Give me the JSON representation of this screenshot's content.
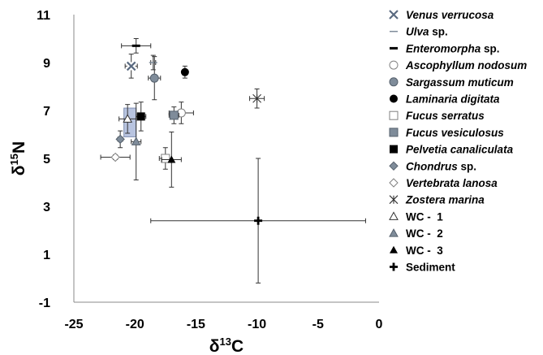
{
  "chart_data": {
    "type": "scatter",
    "xlabel": "δ13C",
    "xlabel_parts": [
      "δ",
      "13",
      "C"
    ],
    "ylabel": "δ15N",
    "ylabel_parts": [
      "δ",
      "15",
      "N"
    ],
    "xlim": [
      -25,
      0
    ],
    "ylim": [
      -1,
      11
    ],
    "xticks": [
      -25,
      -20,
      -15,
      -10,
      -5,
      0
    ],
    "yticks": [
      -1,
      1,
      3,
      5,
      7,
      9,
      11
    ],
    "grid": false,
    "legend_position": "right",
    "series": [
      {
        "name": "Venus verrucosa",
        "name_italic": "Venus verrucosa",
        "name_plain": "",
        "marker": "x-box",
        "x": -20.3,
        "y": 8.85,
        "xerr": 0.5,
        "yerr": 0.5
      },
      {
        "name": "Ulva sp.",
        "name_italic": "Ulva",
        "name_plain": " sp.",
        "marker": "dash",
        "x": -18.5,
        "y": 9.0,
        "xerr": 0.2,
        "yerr": 0.3
      },
      {
        "name": "Enteromorpha sp.",
        "name_italic": "Enteromorpha",
        "name_plain": " sp.",
        "marker": "bar",
        "x": -19.9,
        "y": 9.7,
        "xerr": 1.2,
        "yerr": 0.3
      },
      {
        "name": "Ascophyllum nodosum",
        "name_italic": "Ascophyllum nodosum",
        "name_plain": "",
        "marker": "circle-open",
        "x": -16.2,
        "y": 6.9,
        "xerr": 1.0,
        "yerr": 0.45
      },
      {
        "name": "Sargassum muticum",
        "name_italic": "Sargassum muticum",
        "name_plain": "",
        "marker": "circle-grey",
        "x": -18.4,
        "y": 8.35,
        "xerr": 0.5,
        "yerr": 0.9
      },
      {
        "name": "Laminaria digitata",
        "name_italic": "Laminaria digitata",
        "name_plain": "",
        "marker": "circle-black",
        "x": -15.9,
        "y": 8.6,
        "xerr": 0.2,
        "yerr": 0.25
      },
      {
        "name": "Fucus serratus",
        "name_italic": "Fucus serratus",
        "name_plain": "",
        "marker": "square-open",
        "x": -17.5,
        "y": 5.0,
        "xerr": 0.5,
        "yerr": 0.45
      },
      {
        "name": "Fucus vesiculosus",
        "name_italic": "Fucus vesiculosus",
        "name_plain": "",
        "marker": "square-grey",
        "x": -16.8,
        "y": 6.8,
        "xerr": 0.4,
        "yerr": 0.35
      },
      {
        "name": "Pelvetia canaliculata",
        "name_italic": "Pelvetia canaliculata",
        "name_plain": "",
        "marker": "square-black",
        "x": -19.5,
        "y": 6.75,
        "xerr": 0.4,
        "yerr": 0.6
      },
      {
        "name": "Chondrus sp.",
        "name_italic": "Chondrus",
        "name_plain": " sp.",
        "marker": "diamond-grey",
        "x": -21.2,
        "y": 5.8,
        "xerr": 0.2,
        "yerr": 0.35
      },
      {
        "name": "Vertebrata lanosa",
        "name_italic": "Vertebrata lanosa",
        "name_plain": "",
        "marker": "diamond-open",
        "x": -21.6,
        "y": 5.05,
        "xerr": 1.2,
        "yerr": 0.1
      },
      {
        "name": "Zostera marina",
        "name_italic": "Zostera marina",
        "name_plain": "",
        "marker": "asterisk",
        "x": -10.0,
        "y": 7.5,
        "xerr": 0.6,
        "yerr": 0.4
      },
      {
        "name": "WC - 1",
        "name_italic": "",
        "name_plain": "WC -  1",
        "marker": "triangle-open",
        "x": -20.6,
        "y": 6.65,
        "xerr": 0.7,
        "yerr": 0.6
      },
      {
        "name": "WC - 2",
        "name_italic": "",
        "name_plain": "WC -  2",
        "marker": "triangle-grey",
        "x": -19.9,
        "y": 5.7,
        "xerr": 0.4,
        "yerr": 1.6
      },
      {
        "name": "WC - 3",
        "name_italic": "",
        "name_plain": "WC -  3",
        "marker": "triangle-black",
        "x": -17.0,
        "y": 4.95,
        "xerr": 0.8,
        "yerr": 1.15
      },
      {
        "name": "Sediment",
        "name_italic": "",
        "name_plain": "Sediment",
        "marker": "cross",
        "x": -9.9,
        "y": 2.4,
        "xerr": 8.8,
        "yerr": 2.6
      }
    ],
    "shaded_box": {
      "x0": -20.9,
      "x1": -19.9,
      "y0": 5.9,
      "y1": 7.1,
      "color": "#b8c4e0"
    },
    "colors": {
      "grey": "#808080",
      "black": "#000000",
      "marker_grey": "#7f8c9a"
    }
  }
}
